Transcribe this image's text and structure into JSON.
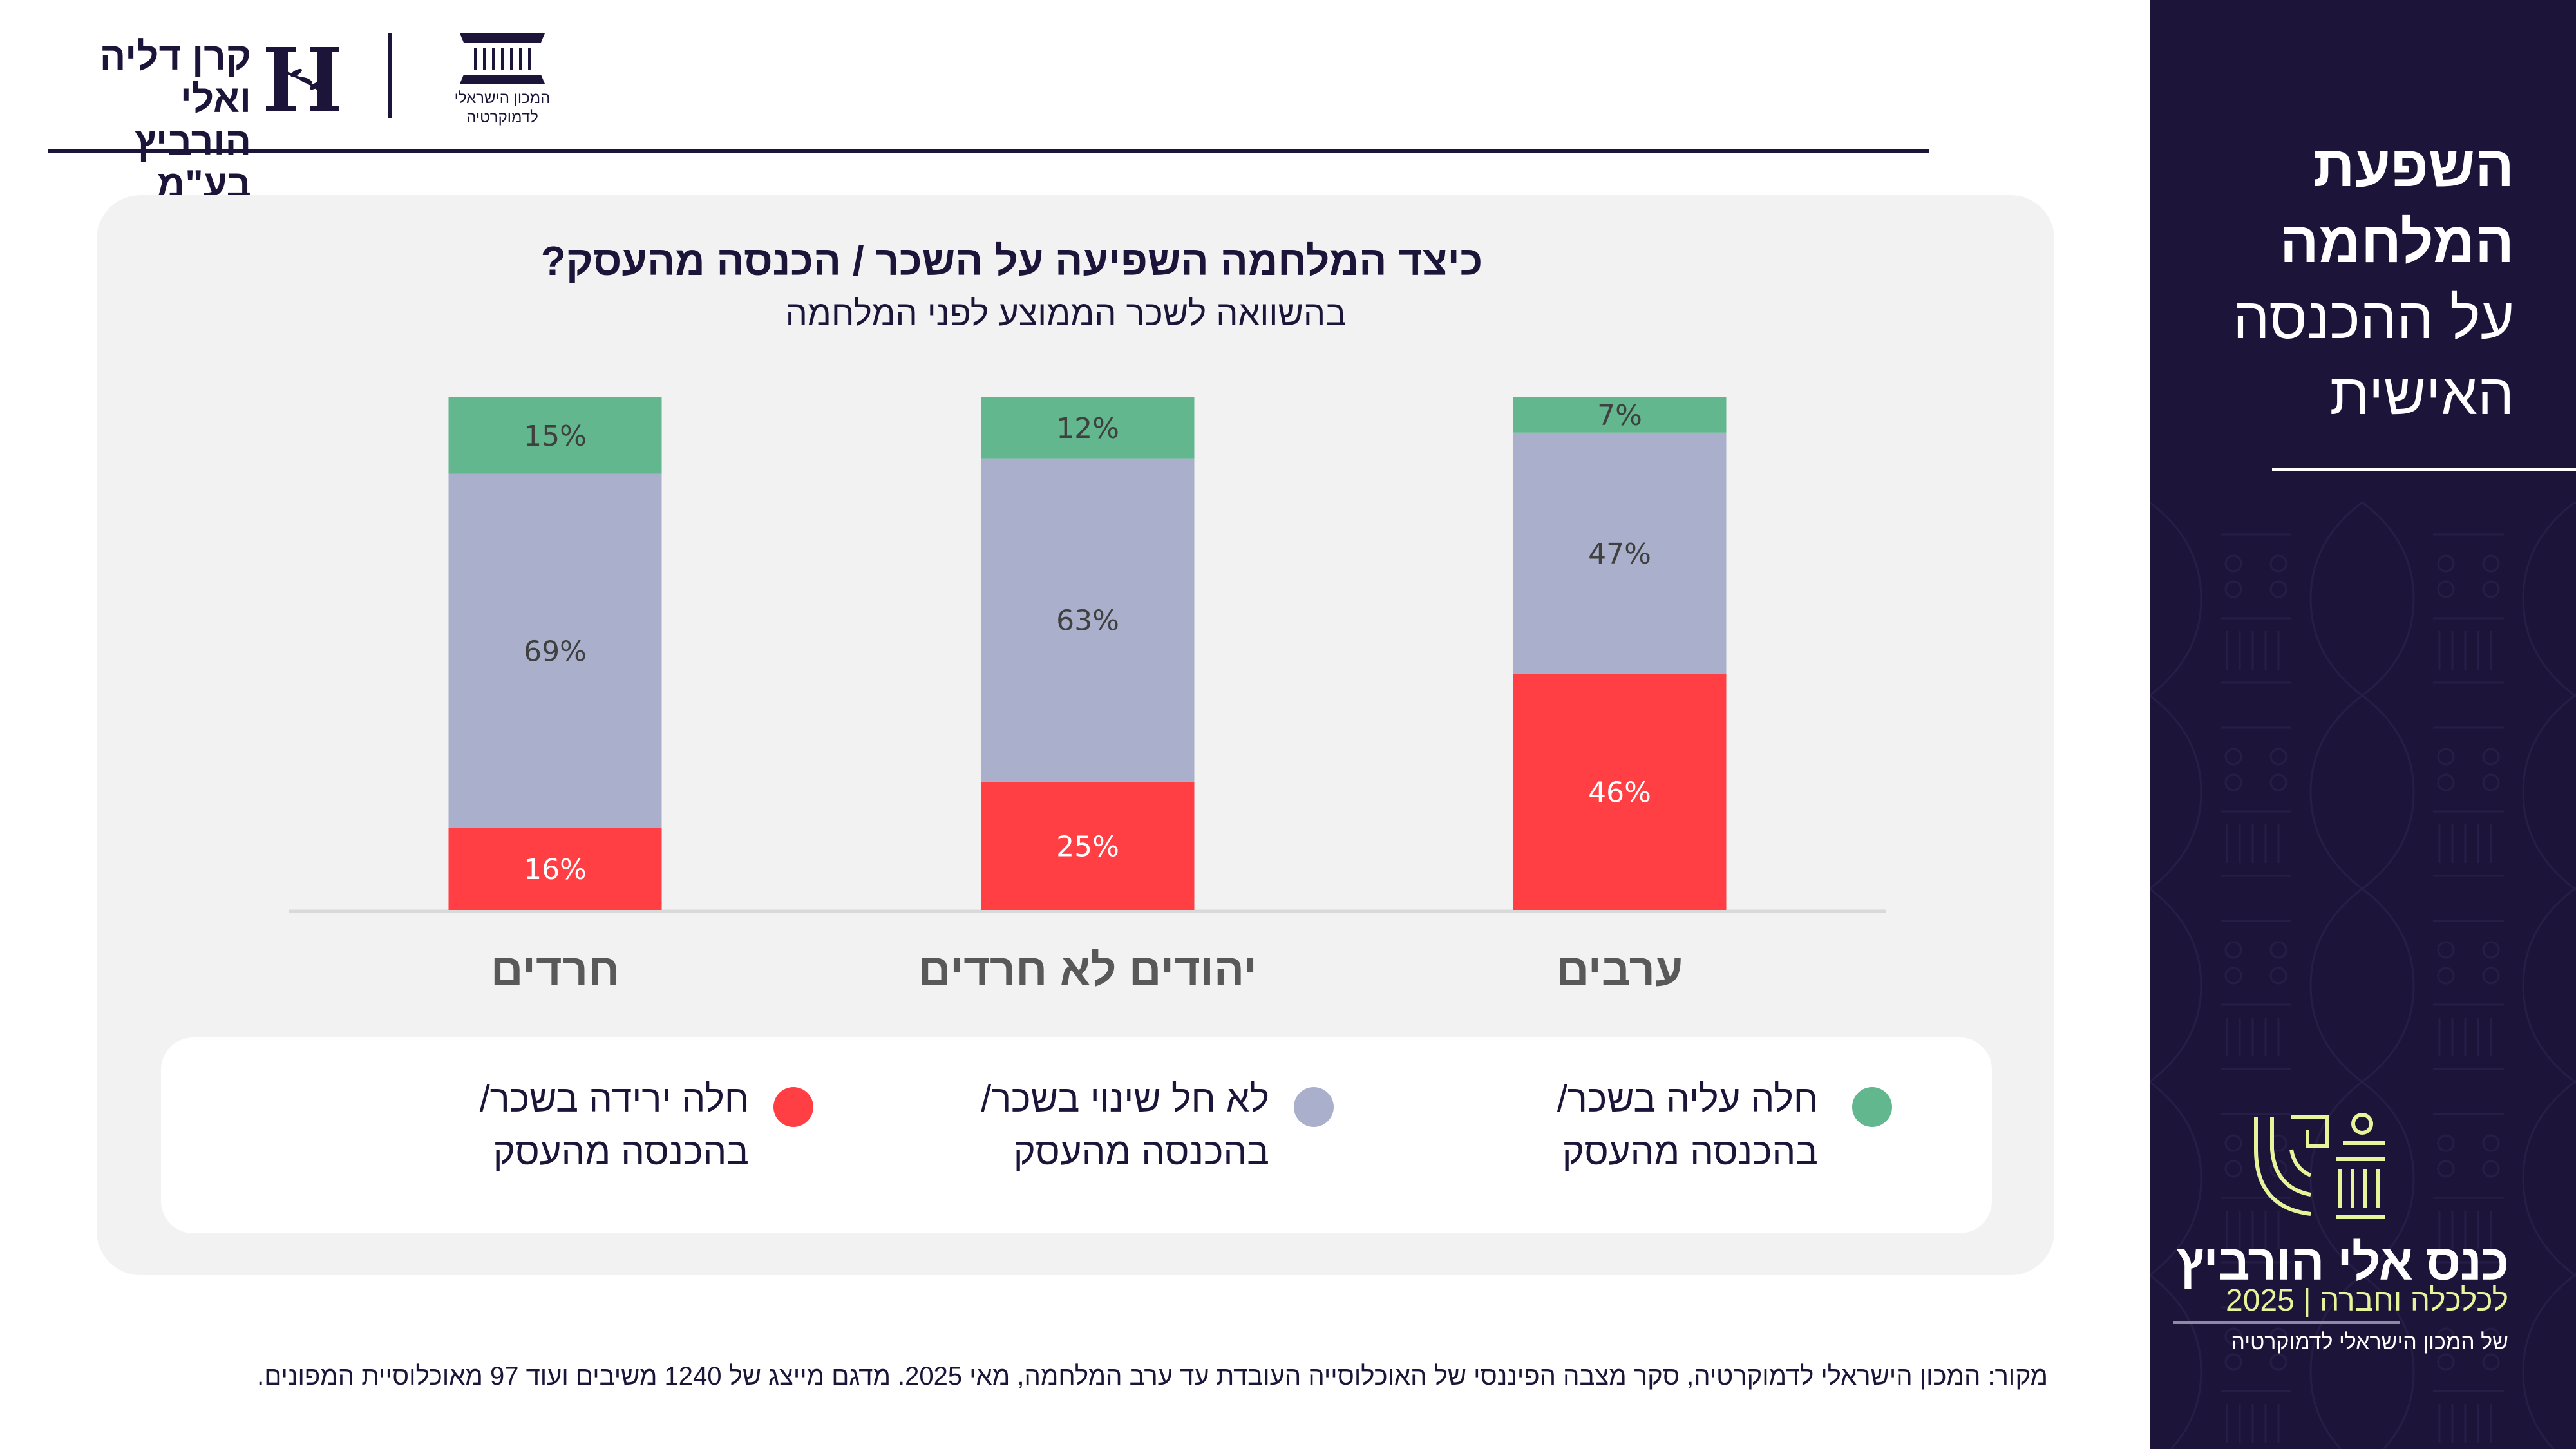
{
  "header": {
    "foundation_logo_text_line1": "קרן דליה ואלי",
    "foundation_logo_text_line2": "הורביץ בע\"מ",
    "institute_logo_text_line1": "המכון הישראלי",
    "institute_logo_text_line2": "לדמוקרטיה"
  },
  "side_panel": {
    "title_bold_line1": "השפעת",
    "title_bold_line2": "המלחמה",
    "title_line3": "על ההכנסה",
    "title_line4": "האישית",
    "conference_name": "כנס אלי הורביץ",
    "conference_subtitle": "לכלכלה וחברה | 2025",
    "conference_org": "של המכון הישראלי לדמוקרטיה",
    "accent_color": "#e6f59a",
    "background_color": "#1c1539"
  },
  "legend": {
    "items": [
      {
        "label": "חלה עליה בשכר/\nבהכנסה מהעסק",
        "color": "#62b78e"
      },
      {
        "label": "לא חל שינוי בשכר/\nבהכנסה מהעסק",
        "color": "#aab0cb"
      },
      {
        "label": "חלה ירידה בשכר/\nבהכנסה מהעסק",
        "color": "#ff3f43"
      }
    ]
  },
  "footer": {
    "source": "מקור: המכון הישראלי לדמוקרטיה, סקר מצבה הפיננסי של האוכלוסייה העובדת עד ערב המלחמה, מאי 2025. מדגם מייצג של 1240 משיבים ועוד 97 מאוכלוסיית המפונים."
  },
  "chart_data": {
    "type": "bar",
    "stacked": true,
    "normalized_percent": true,
    "title": "כיצד המלחמה השפיעה על השכר / הכנסה מהעסק?",
    "subtitle": "בהשוואה לשכר הממוצע לפני המלחמה",
    "xlabel": "",
    "ylabel": "",
    "ylim": [
      0,
      100
    ],
    "grid": false,
    "legend_position": "bottom",
    "categories": [
      "חרדים",
      "יהודים לא חרדים",
      "ערבים"
    ],
    "series": [
      {
        "name": "חלה ירידה בשכר/ בהכנסה מהעסק",
        "color": "#ff3f43",
        "label_color": "#ffffff",
        "values": [
          16,
          25,
          46
        ]
      },
      {
        "name": "לא חל שינוי בשכר/ בהכנסה מהעסק",
        "color": "#aab0cb",
        "label_color": "#404040",
        "values": [
          69,
          63,
          47
        ]
      },
      {
        "name": "חלה עליה בשכר/ בהכנסה מהעסק",
        "color": "#62b78e",
        "label_color": "#404040",
        "values": [
          15,
          12,
          7
        ]
      }
    ],
    "value_suffix": "%"
  }
}
